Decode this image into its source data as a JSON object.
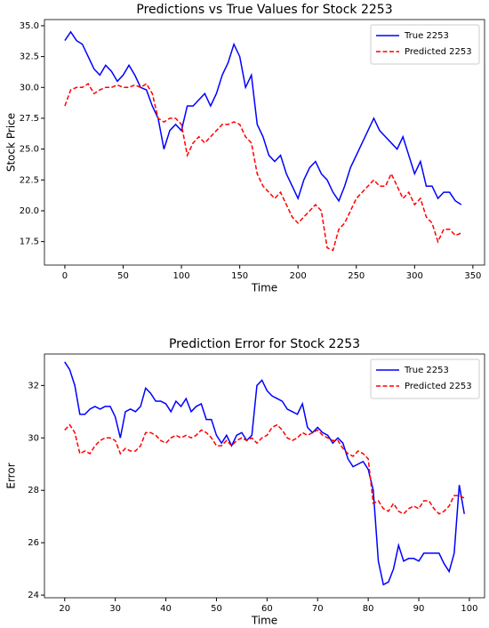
{
  "chart_data": [
    {
      "type": "line",
      "title": "Predictions vs True Values for Stock 2253",
      "x_label": "Time",
      "y_label": "Stock Price",
      "x": [
        0,
        5,
        10,
        15,
        20,
        25,
        30,
        35,
        40,
        45,
        50,
        55,
        60,
        65,
        70,
        75,
        80,
        85,
        90,
        95,
        100,
        105,
        110,
        115,
        120,
        125,
        130,
        135,
        140,
        145,
        150,
        155,
        160,
        165,
        170,
        175,
        180,
        185,
        190,
        195,
        200,
        205,
        210,
        215,
        220,
        225,
        230,
        235,
        240,
        245,
        250,
        255,
        260,
        265,
        270,
        275,
        280,
        285,
        290,
        295,
        300,
        305,
        310,
        315,
        320,
        325,
        330,
        335,
        340
      ],
      "series": [
        {
          "name": "True 2253",
          "color": "#0000ff",
          "dash": false,
          "values": [
            33.8,
            34.5,
            33.8,
            33.5,
            32.5,
            31.5,
            31.0,
            31.8,
            31.3,
            30.5,
            31.0,
            31.8,
            31.0,
            30.0,
            29.8,
            28.5,
            27.5,
            25.0,
            26.5,
            27.0,
            26.5,
            28.5,
            28.5,
            29.0,
            29.5,
            28.5,
            29.5,
            31.0,
            32.0,
            33.5,
            32.5,
            30.0,
            31.0,
            27.0,
            26.0,
            24.5,
            24.0,
            24.5,
            23.0,
            22.0,
            21.0,
            22.5,
            23.5,
            24.0,
            23.0,
            22.5,
            21.5,
            20.8,
            22.0,
            23.5,
            24.5,
            25.5,
            26.5,
            27.5,
            26.5,
            26.0,
            25.5,
            25.0,
            26.0,
            24.5,
            23.0,
            24.0,
            22.0,
            22.0,
            21.0,
            21.5,
            21.5,
            20.8,
            20.5
          ]
        },
        {
          "name": "Predicted 2253",
          "color": "#ff0000",
          "dash": true,
          "values": [
            28.5,
            29.8,
            30.0,
            30.0,
            30.3,
            29.5,
            29.8,
            30.0,
            30.0,
            30.2,
            30.0,
            30.0,
            30.2,
            30.0,
            30.3,
            29.5,
            27.5,
            27.2,
            27.5,
            27.5,
            27.0,
            24.5,
            25.5,
            26.0,
            25.5,
            26.0,
            26.5,
            27.0,
            27.0,
            27.2,
            27.0,
            26.0,
            25.5,
            23.0,
            22.0,
            21.5,
            21.0,
            21.5,
            20.5,
            19.5,
            19.0,
            19.5,
            20.0,
            20.5,
            20.0,
            17.0,
            16.8,
            18.5,
            19.0,
            20.0,
            21.0,
            21.5,
            22.0,
            22.5,
            22.0,
            22.0,
            23.0,
            22.0,
            21.0,
            21.5,
            20.5,
            21.0,
            19.5,
            19.0,
            17.5,
            18.5,
            18.5,
            18.0,
            18.2
          ]
        }
      ],
      "xlim": [
        -17.5,
        360
      ],
      "xticks": [
        0,
        50,
        100,
        150,
        200,
        250,
        300,
        350
      ],
      "ylim": [
        15.6,
        35.5
      ],
      "yticks": [
        17.5,
        {
          "value": 20,
          "label": "20.0"
        },
        22.5,
        {
          "value": 25,
          "label": "25.0"
        },
        27.5,
        {
          "value": 30,
          "label": "30.0"
        },
        32.5,
        {
          "value": 35,
          "label": "35.0"
        }
      ],
      "legend": "upper right"
    },
    {
      "type": "line",
      "title": "Prediction Error for Stock 2253",
      "x_label": "Time",
      "y_label": "Error",
      "x": [
        20,
        21,
        22,
        23,
        24,
        25,
        26,
        27,
        28,
        29,
        30,
        31,
        32,
        33,
        34,
        35,
        36,
        37,
        38,
        39,
        40,
        41,
        42,
        43,
        44,
        45,
        46,
        47,
        48,
        49,
        50,
        51,
        52,
        53,
        54,
        55,
        56,
        57,
        58,
        59,
        60,
        61,
        62,
        63,
        64,
        65,
        66,
        67,
        68,
        69,
        70,
        71,
        72,
        73,
        74,
        75,
        76,
        77,
        78,
        79,
        80,
        81,
        82,
        83,
        84,
        85,
        86,
        87,
        88,
        89,
        90,
        91,
        92,
        93,
        94,
        95,
        96,
        97,
        98,
        99
      ],
      "series": [
        {
          "name": "True 2253",
          "color": "#0000ff",
          "dash": false,
          "values": [
            32.9,
            32.6,
            32.0,
            30.9,
            30.9,
            31.1,
            31.2,
            31.1,
            31.2,
            31.2,
            30.8,
            30.0,
            31.0,
            31.1,
            31.0,
            31.2,
            31.9,
            31.7,
            31.4,
            31.4,
            31.3,
            31.0,
            31.4,
            31.2,
            31.5,
            31.0,
            31.2,
            31.3,
            30.7,
            30.7,
            30.1,
            29.8,
            30.1,
            29.7,
            30.1,
            30.2,
            29.9,
            30.1,
            32.0,
            32.2,
            31.8,
            31.6,
            31.5,
            31.4,
            31.1,
            31.0,
            30.9,
            31.3,
            30.4,
            30.2,
            30.4,
            30.2,
            30.1,
            29.8,
            30.0,
            29.8,
            29.2,
            28.9,
            29.0,
            29.1,
            28.8,
            28.0,
            25.3,
            24.4,
            24.5,
            25.0,
            25.9,
            25.3,
            25.4,
            25.4,
            25.3,
            25.6,
            25.6,
            25.6,
            25.6,
            25.2,
            24.9,
            25.6,
            28.2,
            27.1
          ]
        },
        {
          "name": "Predicted 2253",
          "color": "#ff0000",
          "dash": true,
          "values": [
            30.3,
            30.5,
            30.2,
            29.4,
            29.5,
            29.4,
            29.7,
            29.9,
            30.0,
            30.0,
            29.9,
            29.4,
            29.6,
            29.5,
            29.5,
            29.7,
            30.2,
            30.2,
            30.1,
            29.9,
            29.8,
            30.0,
            30.1,
            30.0,
            30.1,
            30.0,
            30.1,
            30.3,
            30.2,
            30.0,
            29.7,
            29.7,
            29.9,
            29.7,
            29.9,
            30.0,
            29.9,
            30.0,
            29.8,
            30.0,
            30.1,
            30.4,
            30.5,
            30.3,
            30.0,
            29.9,
            30.0,
            30.2,
            30.1,
            30.2,
            30.3,
            30.1,
            30.0,
            29.9,
            29.9,
            29.6,
            29.4,
            29.3,
            29.5,
            29.4,
            29.2,
            27.5,
            27.6,
            27.3,
            27.2,
            27.5,
            27.2,
            27.1,
            27.3,
            27.4,
            27.3,
            27.6,
            27.6,
            27.3,
            27.1,
            27.2,
            27.4,
            27.8,
            27.8,
            27.7
          ]
        }
      ],
      "xlim": [
        16,
        103
      ],
      "xticks": [
        20,
        30,
        40,
        50,
        60,
        70,
        80,
        90,
        100
      ],
      "ylim": [
        23.9,
        33.2
      ],
      "yticks": [
        24,
        26,
        28,
        30,
        32
      ],
      "legend": "upper right"
    }
  ]
}
